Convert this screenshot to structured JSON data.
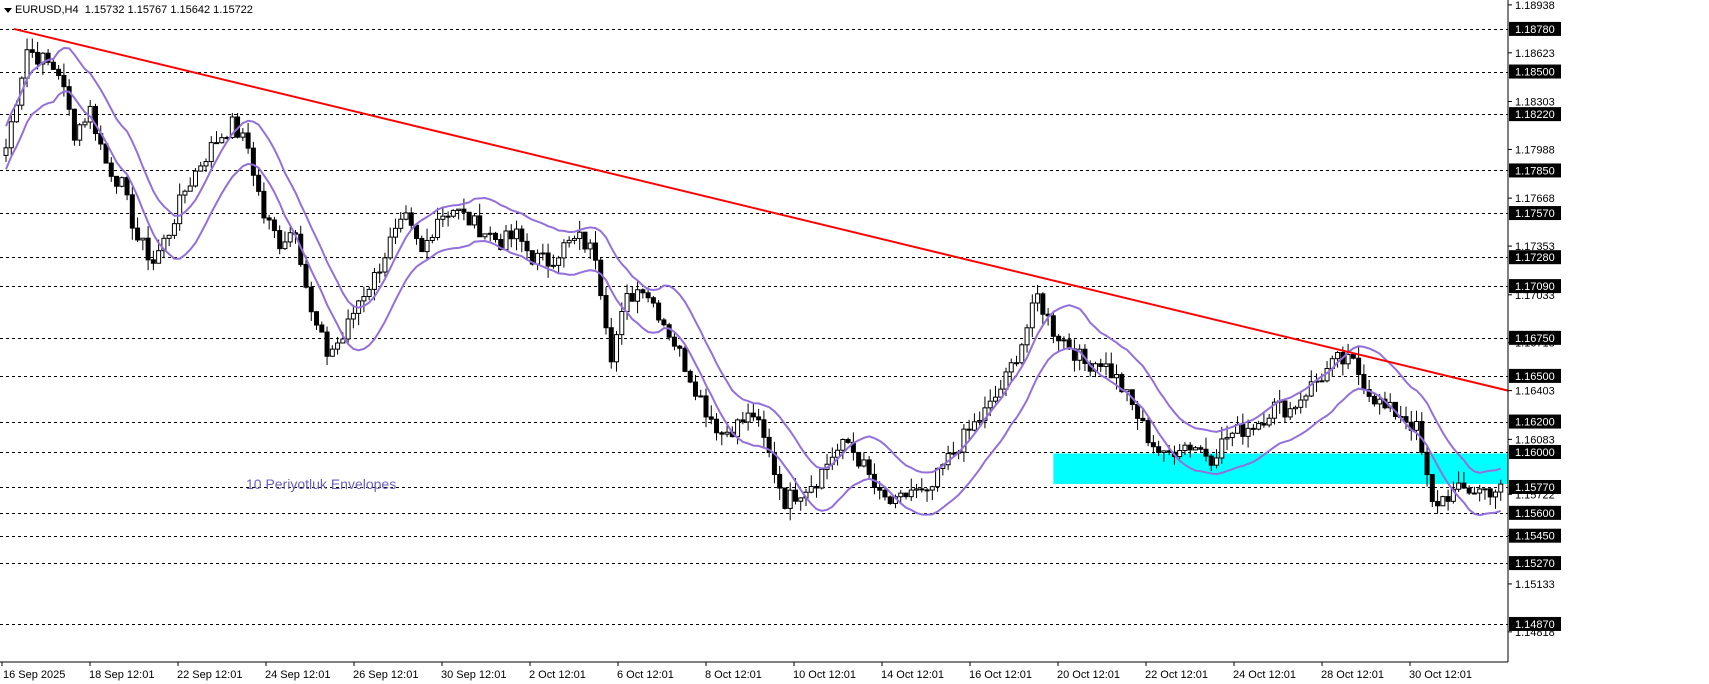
{
  "header": {
    "symbol": "EURUSD",
    "timeframe": "H4",
    "ohlc": "1.15732 1.15767 1.15642 1.15722"
  },
  "annotation": "10 Periyotluk Envelopes",
  "colors": {
    "background": "#ffffff",
    "trendline": "#ff0000",
    "envelope": "#9370db",
    "support_zone": "#00ffff",
    "candle_up": "#ffffff",
    "candle_down": "#000000",
    "grid": "#000000"
  },
  "chart_data": {
    "type": "candlestick",
    "y_range": [
      1.1462,
      1.1897
    ],
    "y_ticks": [
      "1.18938",
      "1.18623",
      "1.18303",
      "1.17988",
      "1.17668",
      "1.17353",
      "1.17033",
      "1.16718",
      "1.16403",
      "1.16083",
      "1.15722",
      "1.15451",
      "1.15133",
      "1.14818"
    ],
    "levels": [
      "1.18780",
      "1.18500",
      "1.18220",
      "1.17850",
      "1.17570",
      "1.17280",
      "1.17090",
      "1.16750",
      "1.16500",
      "1.16200",
      "1.16000",
      "1.15770",
      "1.15600",
      "1.15450",
      "1.15270",
      "1.14870"
    ],
    "x_ticks": [
      "16 Sep 2025",
      "18 Sep 12:01",
      "22 Sep 12:01",
      "24 Sep 12:01",
      "26 Sep 12:01",
      "30 Sep 12:01",
      "2 Oct 12:01",
      "6 Oct 12:01",
      "8 Oct 12:01",
      "10 Oct 12:01",
      "14 Oct 12:01",
      "16 Oct 12:01",
      "20 Oct 12:01",
      "22 Oct 12:01",
      "24 Oct 12:01",
      "28 Oct 12:01",
      "30 Oct 12:01"
    ],
    "trendline": {
      "from": [
        0,
        1.1878
      ],
      "to": [
        284,
        1.16403
      ]
    },
    "support_zone": {
      "from_index": 199,
      "y_range": [
        1.1579,
        1.1599
      ]
    },
    "close_path": [
      [
        0,
        1.18
      ],
      [
        4,
        1.1865
      ],
      [
        10,
        1.185
      ],
      [
        13,
        1.181
      ],
      [
        16,
        1.1825
      ],
      [
        19,
        1.179
      ],
      [
        22,
        1.1775
      ],
      [
        25,
        1.174
      ],
      [
        28,
        1.1725
      ],
      [
        31,
        1.1745
      ],
      [
        34,
        1.1772
      ],
      [
        37,
        1.179
      ],
      [
        40,
        1.1805
      ],
      [
        43,
        1.1815
      ],
      [
        46,
        1.18
      ],
      [
        49,
        1.1755
      ],
      [
        52,
        1.1738
      ],
      [
        55,
        1.1748
      ],
      [
        58,
        1.169
      ],
      [
        61,
        1.1665
      ],
      [
        64,
        1.1675
      ],
      [
        67,
        1.17
      ],
      [
        70,
        1.1715
      ],
      [
        73,
        1.1738
      ],
      [
        76,
        1.1752
      ],
      [
        79,
        1.173
      ],
      [
        82,
        1.1755
      ],
      [
        85,
        1.176
      ],
      [
        88,
        1.1752
      ],
      [
        91,
        1.1745
      ],
      [
        94,
        1.1738
      ],
      [
        97,
        1.1742
      ],
      [
        100,
        1.1728
      ],
      [
        103,
        1.1725
      ],
      [
        106,
        1.1735
      ],
      [
        109,
        1.174
      ],
      [
        112,
        1.173
      ],
      [
        115,
        1.1665
      ],
      [
        118,
        1.17
      ],
      [
        121,
        1.171
      ],
      [
        124,
        1.1692
      ],
      [
        127,
        1.1672
      ],
      [
        130,
        1.165
      ],
      [
        133,
        1.1628
      ],
      [
        136,
        1.1612
      ],
      [
        139,
        1.1618
      ],
      [
        142,
        1.1625
      ],
      [
        145,
        1.1598
      ],
      [
        148,
        1.1568
      ],
      [
        151,
        1.1575
      ],
      [
        154,
        1.1582
      ],
      [
        157,
        1.1598
      ],
      [
        160,
        1.1606
      ],
      [
        163,
        1.159
      ],
      [
        166,
        1.157
      ],
      [
        169,
        1.1565
      ],
      [
        172,
        1.1575
      ],
      [
        175,
        1.157
      ],
      [
        178,
        1.159
      ],
      [
        181,
        1.1605
      ],
      [
        184,
        1.1618
      ],
      [
        187,
        1.163
      ],
      [
        190,
        1.1648
      ],
      [
        193,
        1.1672
      ],
      [
        196,
        1.1702
      ],
      [
        199,
        1.168
      ],
      [
        202,
        1.167
      ],
      [
        205,
        1.1658
      ],
      [
        208,
        1.166
      ],
      [
        211,
        1.1648
      ],
      [
        214,
        1.163
      ],
      [
        217,
        1.161
      ],
      [
        220,
        1.1596
      ],
      [
        223,
        1.1605
      ],
      [
        226,
        1.1604
      ],
      [
        229,
        1.1597
      ],
      [
        232,
        1.161
      ],
      [
        235,
        1.1615
      ],
      [
        238,
        1.162
      ],
      [
        241,
        1.163
      ],
      [
        244,
        1.1628
      ],
      [
        247,
        1.164
      ],
      [
        250,
        1.165
      ],
      [
        253,
        1.166
      ],
      [
        256,
        1.1658
      ],
      [
        259,
        1.164
      ],
      [
        262,
        1.1628
      ],
      [
        265,
        1.1625
      ],
      [
        268,
        1.1615
      ],
      [
        271,
        1.1565
      ],
      [
        274,
        1.1572
      ],
      [
        277,
        1.1575
      ]
    ]
  }
}
